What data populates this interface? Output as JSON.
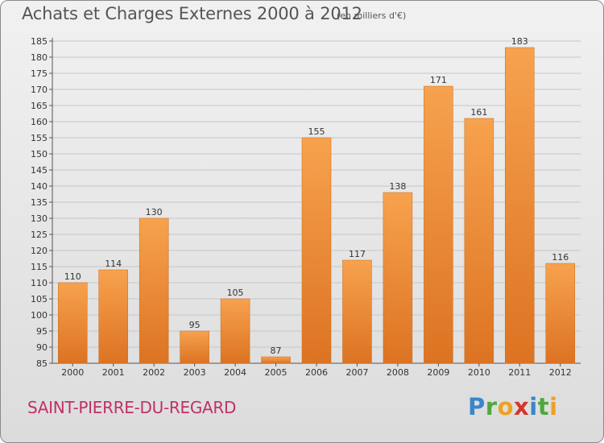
{
  "header": {
    "title": "Achats et Charges Externes 2000 à 2012",
    "subtitle": "(en milliers d'€)"
  },
  "footer": {
    "town": "SAINT-PIERRE-DU-REGARD",
    "logo_letters": [
      "P",
      "r",
      "o",
      "x",
      "i",
      "t",
      "i"
    ]
  },
  "colors": {
    "bar_light": "#f7a24e",
    "bar_dark": "#dc7322",
    "town": "#c0306b"
  },
  "chart_data": {
    "type": "bar",
    "title": "Achats et Charges Externes 2000 à 2012",
    "subtitle": "(en milliers d'€)",
    "categories": [
      "2000",
      "2001",
      "2002",
      "2003",
      "2004",
      "2005",
      "2006",
      "2007",
      "2008",
      "2009",
      "2010",
      "2011",
      "2012"
    ],
    "values": [
      110,
      114,
      130,
      95,
      105,
      87,
      155,
      117,
      138,
      171,
      161,
      183,
      116
    ],
    "ylim": [
      85,
      185
    ],
    "yticks": [
      85,
      90,
      95,
      100,
      105,
      110,
      115,
      120,
      125,
      130,
      135,
      140,
      145,
      150,
      155,
      160,
      165,
      170,
      175,
      180,
      185
    ],
    "grid": true,
    "xlabel": "",
    "ylabel": ""
  }
}
